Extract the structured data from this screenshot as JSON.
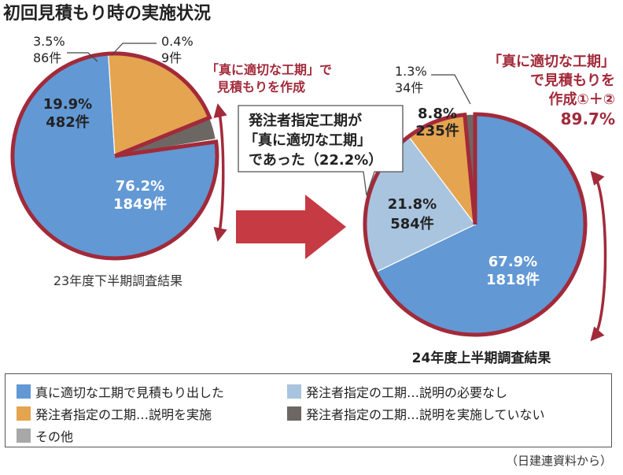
{
  "title": "初回見積もり時の実施状況",
  "colors": {
    "blue": "#6298d4",
    "orange": "#e5a450",
    "lightblue": "#a9c4de",
    "darkgray": "#6d6763",
    "gray": "#a8a8a8",
    "accent": "#a22a3a",
    "arrow": "#c63a44"
  },
  "callouts": {
    "left": [
      "「真に適切な工期」で",
      "見積もりを作成"
    ],
    "right": [
      "「真に適切な工期」",
      "で見積もりを",
      "作成①＋②",
      "89.7%"
    ],
    "box": [
      "発注者指定工期が",
      "「真に適切な工期」",
      "であった（22.2%）"
    ]
  },
  "chart_data": [
    {
      "type": "pie",
      "title": "23年度下半期調査結果",
      "slices": [
        {
          "category": "真に適切な工期で見積もり出した",
          "percent": 76.2,
          "count": 1849,
          "label": [
            "76.2%",
            "1849件"
          ]
        },
        {
          "category": "発注者指定の工期…説明を実施",
          "percent": 19.9,
          "count": 482,
          "label": [
            "19.9%",
            "482件"
          ]
        },
        {
          "category": "発注者指定の工期…説明を実施していない",
          "percent": 3.5,
          "count": 86,
          "label": [
            "3.5%",
            "86件"
          ]
        },
        {
          "category": "その他",
          "percent": 0.4,
          "count": 9,
          "label": [
            "0.4%",
            "9件"
          ]
        }
      ]
    },
    {
      "type": "pie",
      "title": "24年度上半期調査結果",
      "slices": [
        {
          "category": "真に適切な工期で見積もり出した",
          "percent": 67.9,
          "count": 1818,
          "label": [
            "67.9%",
            "1818件"
          ]
        },
        {
          "category": "発注者指定の工期…説明の必要なし",
          "percent": 21.8,
          "count": 584,
          "label": [
            "21.8%",
            "584件"
          ]
        },
        {
          "category": "発注者指定の工期…説明を実施",
          "percent": 8.8,
          "count": 235,
          "label": [
            "8.8%",
            "235件"
          ]
        },
        {
          "category": "発注者指定の工期…説明を実施していない",
          "percent": 1.3,
          "count": 34,
          "label": [
            "1.3%",
            "34件"
          ]
        }
      ]
    }
  ],
  "legend": [
    {
      "label": "真に適切な工期で見積もり出した",
      "color": "#6298d4"
    },
    {
      "label": "発注者指定の工期…説明の必要なし",
      "color": "#a9c4de"
    },
    {
      "label": "発注者指定の工期…説明を実施",
      "color": "#e5a450"
    },
    {
      "label": "発注者指定の工期…説明を実施していない",
      "color": "#6d6763"
    },
    {
      "label": "その他",
      "color": "#a8a8a8"
    }
  ],
  "source": "（日建連資料から）"
}
